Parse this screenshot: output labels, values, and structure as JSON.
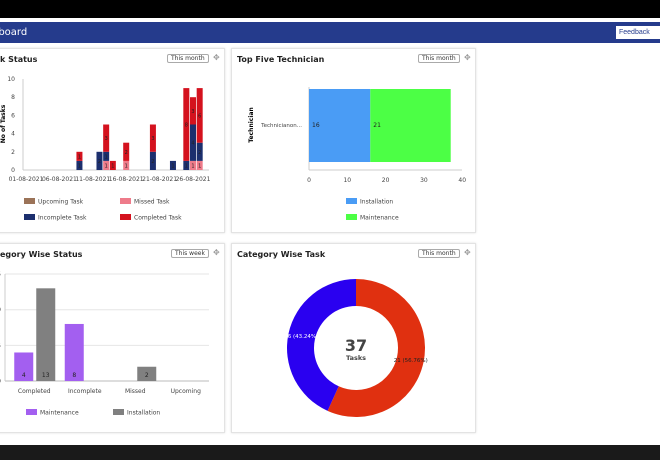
{
  "header": {
    "title": "hboard",
    "feedback_label": "Feedback"
  },
  "colors": {
    "header": "#253b8c",
    "upcoming": "#9b7358",
    "missed": "#ee7b8a",
    "incomplete": "#1c2f6e",
    "completed": "#d4121e",
    "installation": "#4a9cf5",
    "maintenance": "#4cff45",
    "maint_purple": "#a35ff0",
    "install_grey": "#808080",
    "donut_blue": "#2a00f0",
    "donut_red": "#e03010"
  },
  "cards": [
    {
      "title": "k Status",
      "filter": "This month",
      "move_icon": "move-icon"
    },
    {
      "title": "Top Five Technician",
      "filter": "This month",
      "move_icon": "move-icon"
    },
    {
      "title": "egory Wise Status",
      "filter": "This week",
      "move_icon": "move-icon"
    },
    {
      "title": "Category Wise Task",
      "filter": "This month",
      "move_icon": "move-icon"
    }
  ],
  "chart_data": [
    {
      "type": "bar",
      "stacked": true,
      "ylim": [
        0,
        10
      ],
      "yticks": [
        0,
        2,
        4,
        6,
        8,
        10
      ],
      "xlabel": "",
      "ylabel": "No of Tasks",
      "xticks": [
        "01-08-2021",
        "06-08-2021",
        "11-08-2021",
        "16-08-2021",
        "21-08-2021",
        "26-08-2021"
      ],
      "categories": [
        "09-08-2021",
        "12-08-2021",
        "13-08-2021",
        "14-08-2021",
        "16-08-2021",
        "20-08-2021",
        "23-08-2021",
        "25-08-2021",
        "26-08-2021",
        "27-08-2021"
      ],
      "series": [
        {
          "name": "Upcoming Task",
          "values": [
            0,
            0,
            0,
            0,
            0,
            0,
            0,
            0,
            0,
            0
          ]
        },
        {
          "name": "Missed Task",
          "values": [
            0,
            0,
            1,
            0,
            1,
            0,
            0,
            0,
            1,
            1
          ]
        },
        {
          "name": "Incomplete Task",
          "values": [
            1,
            2,
            1,
            0,
            0,
            2,
            1,
            1,
            4,
            2
          ]
        },
        {
          "name": "Completed Task",
          "values": [
            1,
            0,
            3,
            1,
            2,
            3,
            0,
            8,
            3,
            6
          ]
        }
      ],
      "legend": "bottom",
      "grid": false
    },
    {
      "type": "bar",
      "orientation": "horizontal",
      "stacked": true,
      "categories": [
        "Technicianon..."
      ],
      "ylabel": "Technician",
      "xlim": [
        0,
        40
      ],
      "xticks": [
        0,
        10,
        20,
        30,
        40
      ],
      "series": [
        {
          "name": "Installation",
          "values": [
            16
          ]
        },
        {
          "name": "Maintenance",
          "values": [
            21
          ]
        }
      ],
      "legend": "bottom"
    },
    {
      "type": "bar",
      "categories": [
        "Completed",
        "Incomplete",
        "Missed",
        "Upcoming"
      ],
      "ylim": [
        0,
        15
      ],
      "yticks": [
        0,
        5,
        10,
        15
      ],
      "grid": true,
      "series": [
        {
          "name": "Maintenance",
          "values": [
            4,
            8,
            0,
            0
          ]
        },
        {
          "name": "Installation",
          "values": [
            13,
            0,
            2,
            0
          ]
        }
      ],
      "legend": "bottom"
    },
    {
      "type": "pie",
      "donut": true,
      "center_value": "37",
      "center_label": "Tasks",
      "slices": [
        {
          "name": "Maintenance",
          "value": 21,
          "label": "21 (56.76%)"
        },
        {
          "name": "Installation",
          "value": 16,
          "label": "16 (43.24%)"
        }
      ]
    }
  ]
}
